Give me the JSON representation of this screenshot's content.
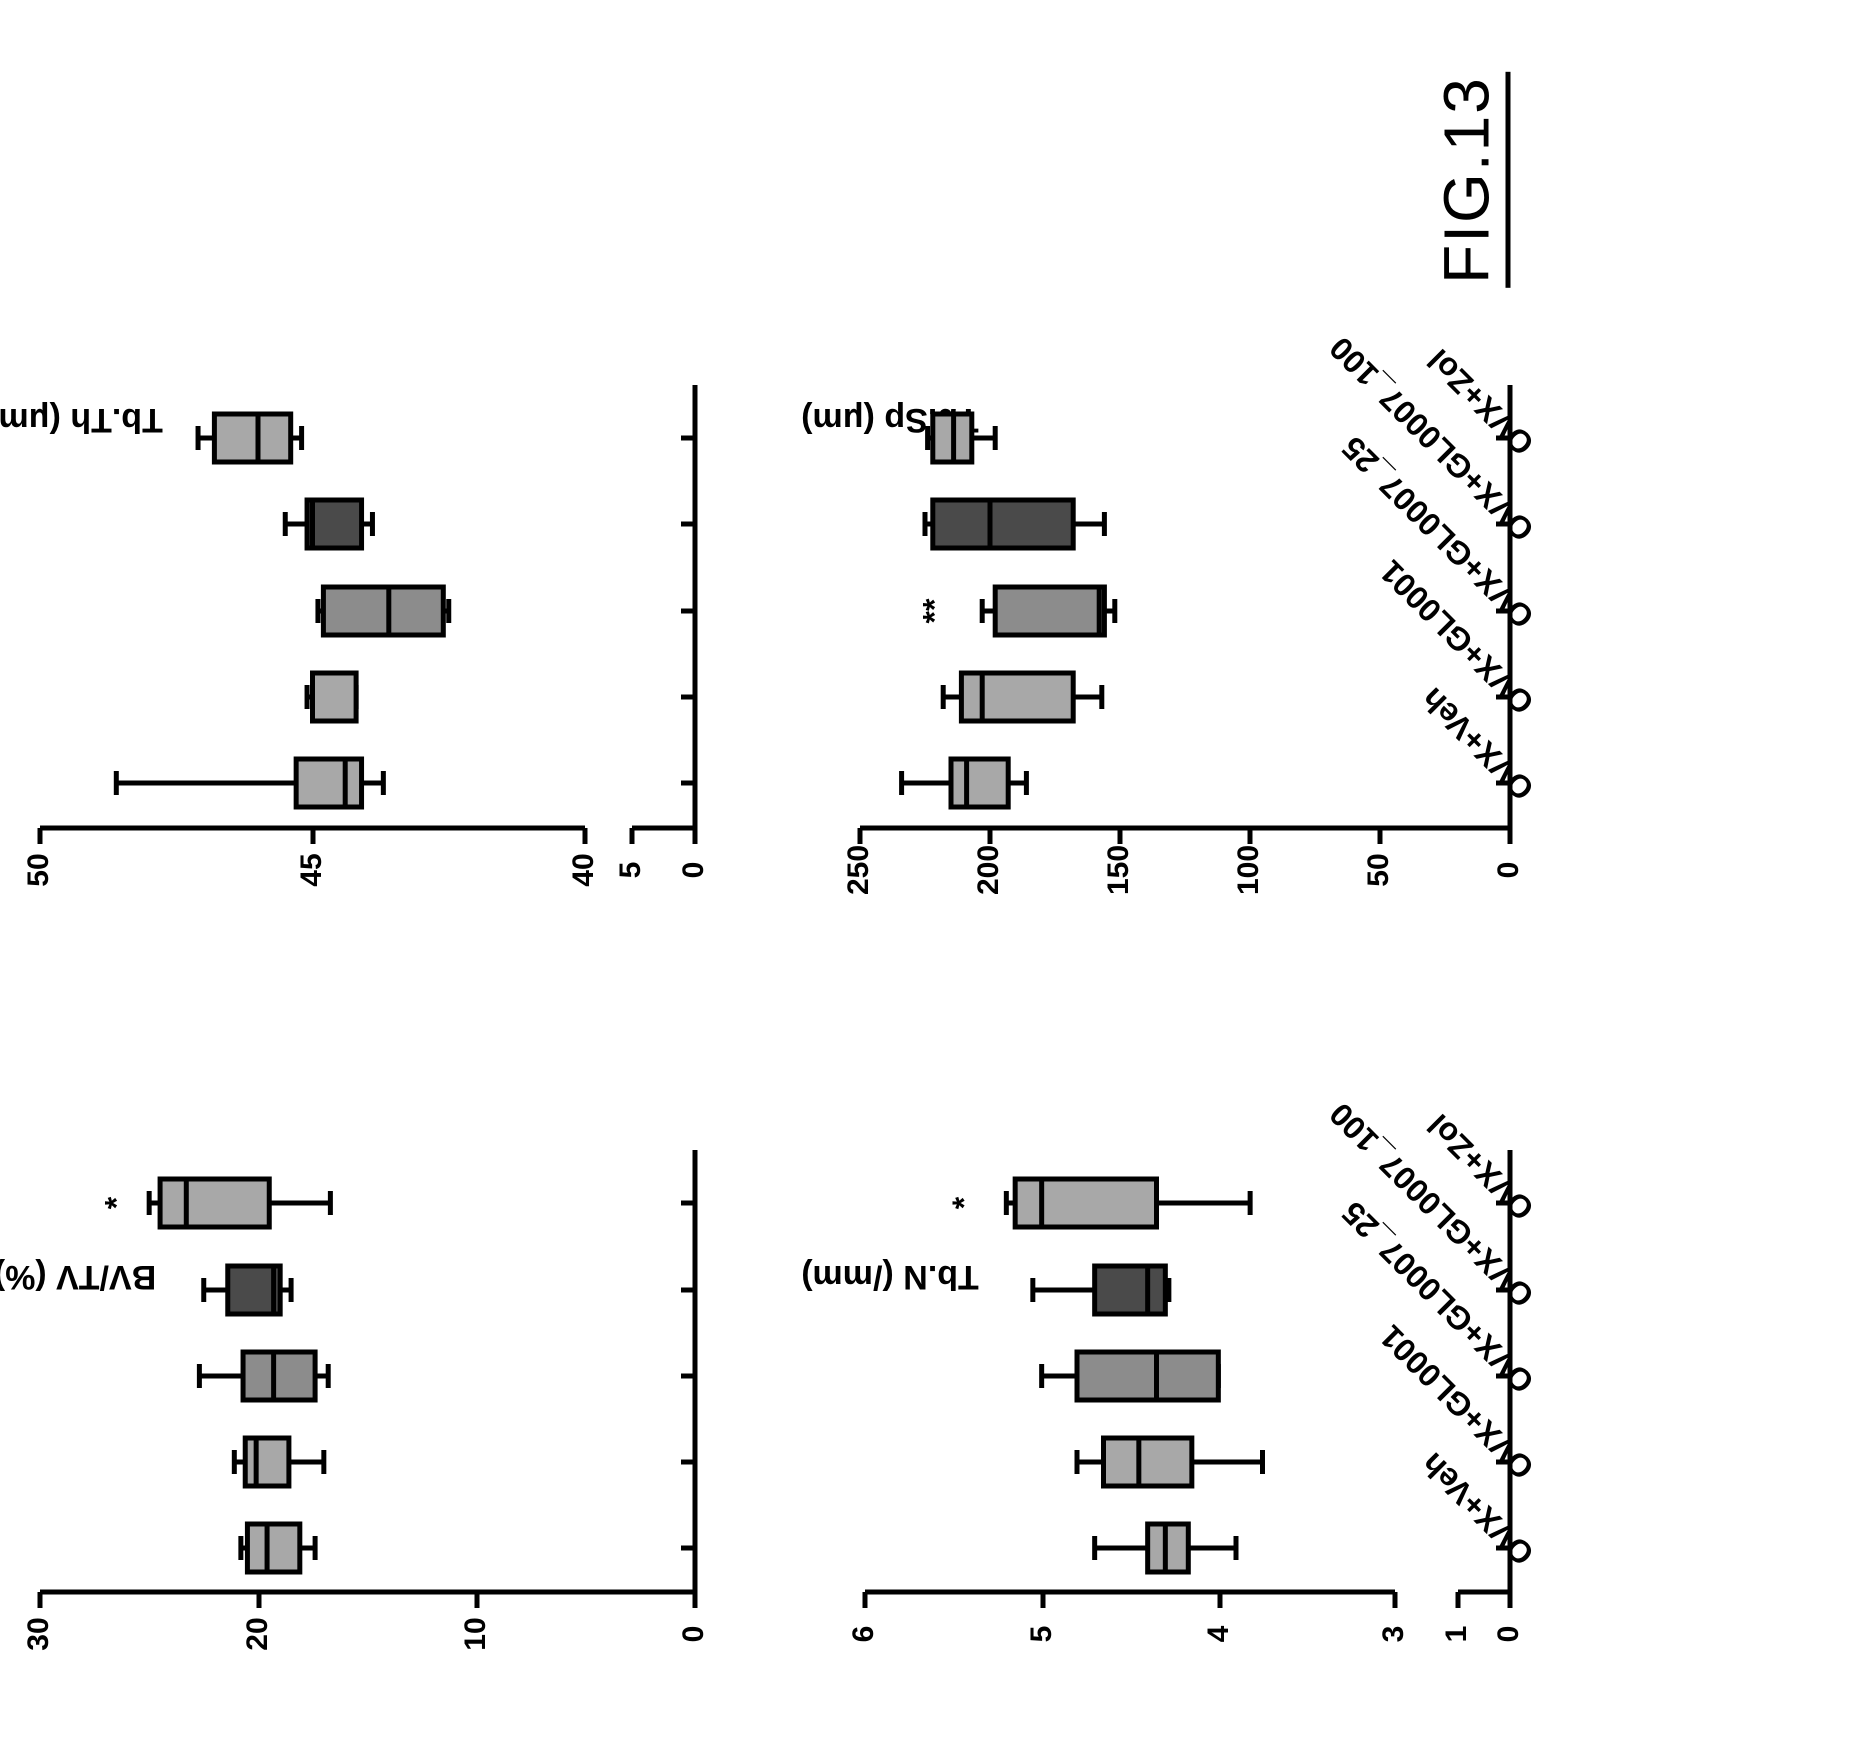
{
  "figure": {
    "label": "FIG.13"
  },
  "categories": [
    "OVX+Veh",
    "OVX+GL0001",
    "OVX+GL0007_25",
    "OVX+GL0007_100",
    "OVX+Zol"
  ],
  "colors": {
    "box_light": "#a8a8a8",
    "box_medium": "#8c8c8c",
    "box_dark": "#4a4a4a",
    "stroke": "#000000"
  },
  "chart_data": [
    {
      "type": "box",
      "ylabel": "BV/TV (%)",
      "ylim": [
        0,
        30
      ],
      "yticks": [
        "0",
        "10",
        "20",
        "30"
      ],
      "categories": [
        "OVX+Veh",
        "OVX+GL0001",
        "OVX+GL0007_25",
        "OVX+GL0007_100",
        "OVX+Zol"
      ],
      "boxes": [
        {
          "min": 17.4,
          "q1": 18.1,
          "median": 19.6,
          "q3": 20.5,
          "max": 20.8,
          "fill": "box_light",
          "sig": ""
        },
        {
          "min": 17.0,
          "q1": 18.6,
          "median": 20.1,
          "q3": 20.6,
          "max": 21.1,
          "fill": "box_light",
          "sig": ""
        },
        {
          "min": 16.8,
          "q1": 17.4,
          "median": 19.3,
          "q3": 20.7,
          "max": 22.7,
          "fill": "box_medium",
          "sig": ""
        },
        {
          "min": 18.5,
          "q1": 19.0,
          "median": 19.3,
          "q3": 21.4,
          "max": 22.5,
          "fill": "box_dark",
          "sig": ""
        },
        {
          "min": 16.7,
          "q1": 19.5,
          "median": 23.3,
          "q3": 24.5,
          "max": 25.0,
          "fill": "box_light",
          "sig": "*"
        }
      ]
    },
    {
      "type": "box",
      "ylabel": "Tb.Th (μm)",
      "ylim": [
        0,
        50
      ],
      "axis_break": [
        5,
        40
      ],
      "yticks": [
        "0",
        "5",
        "40",
        "45",
        "50"
      ],
      "categories": [
        "OVX+Veh",
        "OVX+GL0001",
        "OVX+GL0007_25",
        "OVX+GL0007_100",
        "OVX+Zol"
      ],
      "boxes": [
        {
          "min": 43.7,
          "q1": 44.1,
          "median": 44.4,
          "q3": 45.3,
          "max": 48.6,
          "fill": "box_light",
          "sig": ""
        },
        {
          "min": 44.2,
          "q1": 44.2,
          "median": 45.0,
          "q3": 45.0,
          "max": 45.1,
          "fill": "box_light",
          "sig": ""
        },
        {
          "min": 42.5,
          "q1": 42.6,
          "median": 43.6,
          "q3": 44.8,
          "max": 44.9,
          "fill": "box_medium",
          "sig": ""
        },
        {
          "min": 43.9,
          "q1": 44.1,
          "median": 45.0,
          "q3": 45.1,
          "max": 45.5,
          "fill": "box_dark",
          "sig": ""
        },
        {
          "min": 45.2,
          "q1": 45.4,
          "median": 46.0,
          "q3": 46.8,
          "max": 47.1,
          "fill": "box_light",
          "sig": ""
        }
      ]
    },
    {
      "type": "box",
      "ylabel": "Tb.N (/mm)",
      "ylim": [
        0,
        6
      ],
      "axis_break": [
        1,
        3
      ],
      "yticks": [
        "0",
        "1",
        "3",
        "4",
        "5",
        "6"
      ],
      "categories": [
        "OVX+Veh",
        "OVX+GL0001",
        "OVX+GL0007_25",
        "OVX+GL0007_100",
        "OVX+Zol"
      ],
      "boxes": [
        {
          "min": 3.9,
          "q1": 4.17,
          "median": 4.3,
          "q3": 4.4,
          "max": 4.7,
          "fill": "box_light",
          "sig": ""
        },
        {
          "min": 3.75,
          "q1": 4.15,
          "median": 4.45,
          "q3": 4.65,
          "max": 4.8,
          "fill": "box_light",
          "sig": ""
        },
        {
          "min": 4.0,
          "q1": 4.0,
          "median": 4.35,
          "q3": 4.8,
          "max": 5.0,
          "fill": "box_medium",
          "sig": ""
        },
        {
          "min": 4.28,
          "q1": 4.3,
          "median": 4.4,
          "q3": 4.7,
          "max": 5.05,
          "fill": "box_dark",
          "sig": ""
        },
        {
          "min": 3.82,
          "q1": 4.35,
          "median": 5.0,
          "q3": 5.15,
          "max": 5.2,
          "fill": "box_light",
          "sig": "*"
        }
      ]
    },
    {
      "type": "box",
      "ylabel": "Tb.Sp (μm)",
      "ylim": [
        0,
        250
      ],
      "yticks": [
        "0",
        "50",
        "100",
        "150",
        "200",
        "250"
      ],
      "categories": [
        "OVX+Veh",
        "OVX+GL0001",
        "OVX+GL0007_25",
        "OVX+GL0007_100",
        "OVX+Zol"
      ],
      "boxes": [
        {
          "min": 186,
          "q1": 193,
          "median": 209,
          "q3": 215,
          "max": 234,
          "fill": "box_light",
          "sig": ""
        },
        {
          "min": 157,
          "q1": 168,
          "median": 203,
          "q3": 211,
          "max": 218,
          "fill": "box_light",
          "sig": ""
        },
        {
          "min": 152,
          "q1": 156,
          "median": 158,
          "q3": 198,
          "max": 203,
          "fill": "box_medium",
          "sig": "**"
        },
        {
          "min": 156,
          "q1": 168,
          "median": 200,
          "q3": 222,
          "max": 225,
          "fill": "box_dark",
          "sig": ""
        },
        {
          "min": 198,
          "q1": 207,
          "median": 214,
          "q3": 222,
          "max": 224,
          "fill": "box_light",
          "sig": ""
        }
      ]
    }
  ]
}
